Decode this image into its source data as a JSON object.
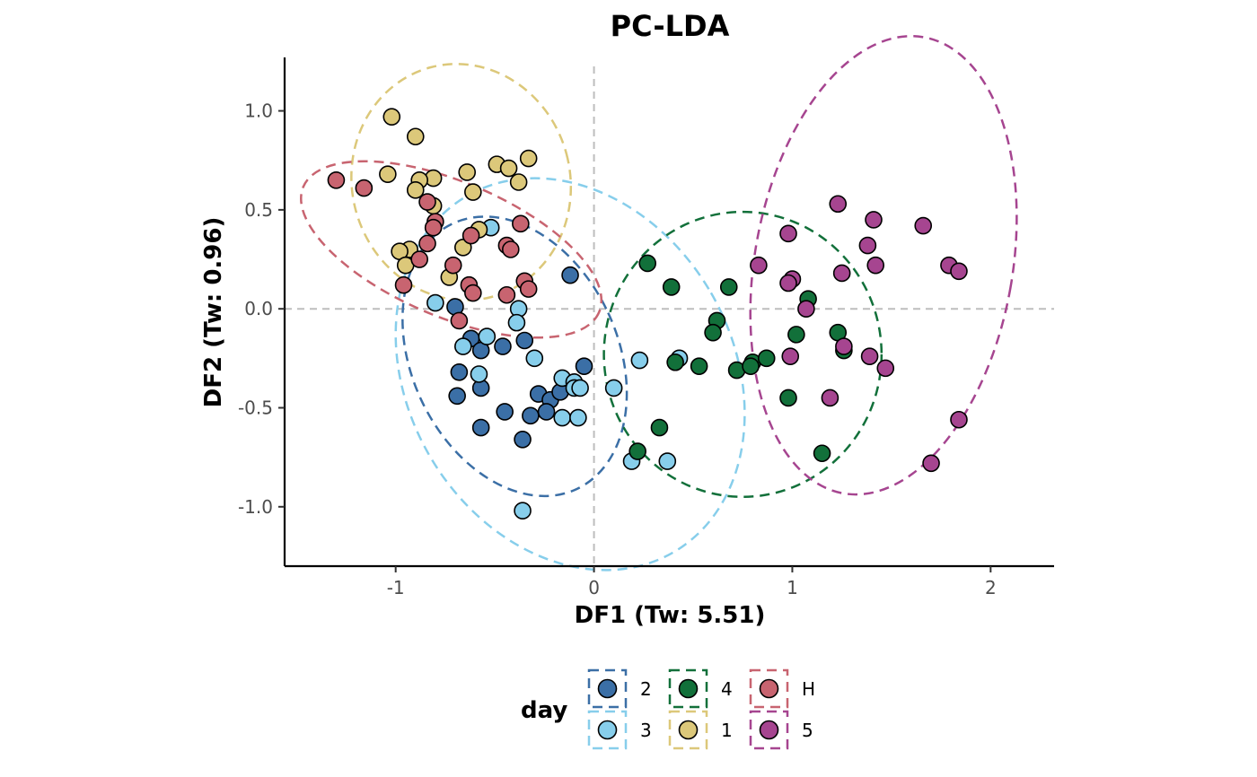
{
  "chart_data": {
    "type": "scatter",
    "title": "PC-LDA",
    "xlabel": "DF1 (Tw: 5.51)",
    "ylabel": "DF2 (Tw: 0.96)",
    "xlim": [
      -1.56,
      2.32
    ],
    "ylim": [
      -1.3,
      1.27
    ],
    "x_ticks": [
      -1,
      0,
      1,
      2
    ],
    "x_tick_labels": [
      "-1",
      "0",
      "1",
      "2"
    ],
    "y_ticks": [
      -1.0,
      -0.5,
      0.0,
      0.5,
      1.0
    ],
    "y_tick_labels": [
      "-1.0",
      "-0.5",
      "0.0",
      "0.5",
      "1.0"
    ],
    "reference_lines": {
      "x": 0,
      "y": 0,
      "style": "dashed"
    },
    "grid": false,
    "ellipses": "dashed 95% confidence ellipse per group",
    "legend": {
      "title": "day",
      "placement": "bottom",
      "columns": [
        [
          "2",
          "3"
        ],
        [
          "4",
          "1"
        ],
        [
          "H",
          "5"
        ]
      ]
    },
    "series": [
      {
        "name": "2",
        "color": "#3b6fa6",
        "ellipse": {
          "cx": -0.4,
          "cy": -0.24,
          "rx": 0.52,
          "ry": 0.74,
          "angle": -25
        },
        "points": [
          [
            -0.12,
            0.17
          ],
          [
            -0.7,
            0.01
          ],
          [
            -0.62,
            -0.15
          ],
          [
            -0.57,
            -0.21
          ],
          [
            -0.46,
            -0.19
          ],
          [
            -0.35,
            -0.16
          ],
          [
            -0.05,
            -0.29
          ],
          [
            -0.68,
            -0.32
          ],
          [
            -0.57,
            -0.4
          ],
          [
            -0.69,
            -0.44
          ],
          [
            -0.28,
            -0.43
          ],
          [
            -0.22,
            -0.46
          ],
          [
            -0.17,
            -0.42
          ],
          [
            -0.24,
            -0.52
          ],
          [
            -0.45,
            -0.52
          ],
          [
            -0.32,
            -0.54
          ],
          [
            -0.57,
            -0.6
          ],
          [
            -0.36,
            -0.66
          ]
        ]
      },
      {
        "name": "3",
        "color": "#87ceeb",
        "ellipse": {
          "cx": -0.12,
          "cy": -0.33,
          "rx": 0.82,
          "ry": 1.04,
          "angle": -30
        },
        "points": [
          [
            -0.52,
            0.41
          ],
          [
            -0.8,
            0.03
          ],
          [
            -0.38,
            0.0
          ],
          [
            -0.39,
            -0.07
          ],
          [
            -0.54,
            -0.14
          ],
          [
            -0.66,
            -0.19
          ],
          [
            -0.3,
            -0.25
          ],
          [
            -0.58,
            -0.33
          ],
          [
            -0.16,
            -0.35
          ],
          [
            -0.1,
            -0.37
          ],
          [
            -0.1,
            -0.4
          ],
          [
            -0.07,
            -0.4
          ],
          [
            0.1,
            -0.4
          ],
          [
            -0.16,
            -0.55
          ],
          [
            -0.08,
            -0.55
          ],
          [
            0.23,
            -0.26
          ],
          [
            0.43,
            -0.25
          ],
          [
            0.19,
            -0.77
          ],
          [
            0.37,
            -0.77
          ],
          [
            -0.36,
            -1.02
          ]
        ]
      },
      {
        "name": "4",
        "color": "#12703a",
        "ellipse": {
          "cx": 0.75,
          "cy": -0.23,
          "rx": 0.7,
          "ry": 0.72,
          "angle": 0
        },
        "points": [
          [
            0.27,
            0.23
          ],
          [
            0.39,
            0.11
          ],
          [
            0.68,
            0.11
          ],
          [
            1.08,
            0.05
          ],
          [
            0.62,
            -0.06
          ],
          [
            0.6,
            -0.12
          ],
          [
            1.02,
            -0.13
          ],
          [
            1.23,
            -0.12
          ],
          [
            1.26,
            -0.21
          ],
          [
            0.41,
            -0.27
          ],
          [
            0.53,
            -0.29
          ],
          [
            0.72,
            -0.31
          ],
          [
            0.8,
            -0.27
          ],
          [
            0.87,
            -0.25
          ],
          [
            0.79,
            -0.29
          ],
          [
            0.98,
            -0.45
          ],
          [
            0.33,
            -0.6
          ],
          [
            0.22,
            -0.72
          ],
          [
            1.15,
            -0.73
          ]
        ]
      },
      {
        "name": "1",
        "color": "#dcc87a",
        "ellipse": {
          "cx": -0.67,
          "cy": 0.64,
          "rx": 0.55,
          "ry": 0.6,
          "angle": -15
        },
        "points": [
          [
            -1.02,
            0.97
          ],
          [
            -0.9,
            0.87
          ],
          [
            -0.33,
            0.76
          ],
          [
            -0.49,
            0.73
          ],
          [
            -0.43,
            0.71
          ],
          [
            -0.64,
            0.69
          ],
          [
            -1.04,
            0.68
          ],
          [
            -0.81,
            0.66
          ],
          [
            -0.88,
            0.65
          ],
          [
            -0.38,
            0.64
          ],
          [
            -0.9,
            0.6
          ],
          [
            -0.61,
            0.59
          ],
          [
            -0.81,
            0.52
          ],
          [
            -0.58,
            0.4
          ],
          [
            -0.66,
            0.31
          ],
          [
            -0.93,
            0.3
          ],
          [
            -0.98,
            0.29
          ],
          [
            -0.73,
            0.16
          ],
          [
            -0.95,
            0.22
          ]
        ]
      },
      {
        "name": "H",
        "color": "#c86470",
        "ellipse": {
          "cx": -0.72,
          "cy": 0.3,
          "rx": 0.81,
          "ry": 0.34,
          "angle": 23
        },
        "points": [
          [
            -1.3,
            0.65
          ],
          [
            -1.16,
            0.61
          ],
          [
            -0.84,
            0.54
          ],
          [
            -0.8,
            0.44
          ],
          [
            -0.81,
            0.41
          ],
          [
            -0.37,
            0.43
          ],
          [
            -0.62,
            0.37
          ],
          [
            -0.44,
            0.32
          ],
          [
            -0.42,
            0.3
          ],
          [
            -0.84,
            0.33
          ],
          [
            -0.88,
            0.25
          ],
          [
            -0.71,
            0.22
          ],
          [
            -0.96,
            0.12
          ],
          [
            -0.63,
            0.12
          ],
          [
            -0.35,
            0.14
          ],
          [
            -0.33,
            0.1
          ],
          [
            -0.61,
            0.08
          ],
          [
            -0.44,
            0.07
          ],
          [
            -0.68,
            -0.06
          ]
        ]
      },
      {
        "name": "5",
        "color": "#a64590",
        "ellipse": {
          "cx": 1.46,
          "cy": 0.22,
          "rx": 0.65,
          "ry": 1.17,
          "angle": 10
        },
        "points": [
          [
            1.23,
            0.53
          ],
          [
            1.41,
            0.45
          ],
          [
            1.66,
            0.42
          ],
          [
            0.98,
            0.38
          ],
          [
            1.38,
            0.32
          ],
          [
            0.83,
            0.22
          ],
          [
            1.42,
            0.22
          ],
          [
            1.79,
            0.22
          ],
          [
            1.84,
            0.19
          ],
          [
            1.25,
            0.18
          ],
          [
            1.0,
            0.15
          ],
          [
            0.98,
            0.13
          ],
          [
            1.07,
            0.0
          ],
          [
            1.26,
            -0.19
          ],
          [
            0.99,
            -0.24
          ],
          [
            1.39,
            -0.24
          ],
          [
            1.47,
            -0.3
          ],
          [
            1.19,
            -0.45
          ],
          [
            1.84,
            -0.56
          ],
          [
            1.7,
            -0.78
          ]
        ]
      }
    ]
  }
}
